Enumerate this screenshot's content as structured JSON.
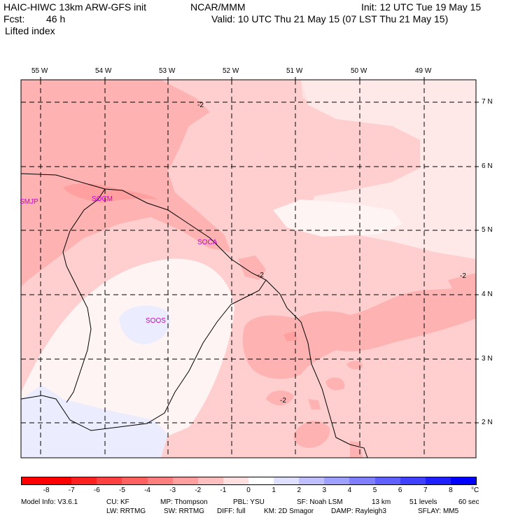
{
  "header": {
    "model": "HAIC-HIWC 13km ARW-GFS init",
    "org": "NCAR/MMM",
    "init": "Init: 12 UTC Tue 19 May 15",
    "fcst_label": "Fcst:",
    "fcst_value": "46 h",
    "valid": "Valid: 10 UTC Thu 21 May 15 (07 LST Thu 21 May 15)",
    "field": "Lifted index"
  },
  "map": {
    "lon_labels": [
      "55 W",
      "54 W",
      "53 W",
      "52 W",
      "51 W",
      "50 W",
      "49 W"
    ],
    "lat_labels": [
      "7 N",
      "6 N",
      "5 N",
      "4 N",
      "3 N",
      "2 N"
    ],
    "stations": [
      {
        "id": "SMJP"
      },
      {
        "id": "SOCM"
      },
      {
        "id": "SOCA"
      },
      {
        "id": "SOOS"
      }
    ],
    "contour_labels": [
      "-2",
      "-2",
      "-2",
      "-2"
    ],
    "station_color": "#cc00cc"
  },
  "colorbar": {
    "ticks": [
      "-8",
      "-7",
      "-6",
      "-5",
      "-4",
      "-3",
      "-2",
      "-1",
      "0",
      "1",
      "2",
      "3",
      "4",
      "5",
      "6",
      "7",
      "8"
    ],
    "unit": "°C",
    "colors": [
      "#ff0000",
      "#ff2020",
      "#ff4040",
      "#ff6060",
      "#ff7f7f",
      "#ff9f9f",
      "#ffbfbf",
      "#ffdfdf",
      "#ffffff",
      "#dfdfff",
      "#bfbfff",
      "#9f9fff",
      "#7f7fff",
      "#6060ff",
      "#4040ff",
      "#2020ff",
      "#0000ff"
    ]
  },
  "footer": {
    "line1": [
      "Model Info: V3.6.1",
      "CU: KF",
      "MP: Thompson",
      "PBL: YSU",
      "SF: Noah LSM",
      "13 km",
      "51 levels",
      "60 sec"
    ],
    "line2": [
      "LW: RRTMG",
      "SW: RRTMG",
      "DIFF: full",
      "KM: 2D Smagor",
      "DAMP: Rayleigh3",
      "SFLAY: MM5"
    ]
  }
}
